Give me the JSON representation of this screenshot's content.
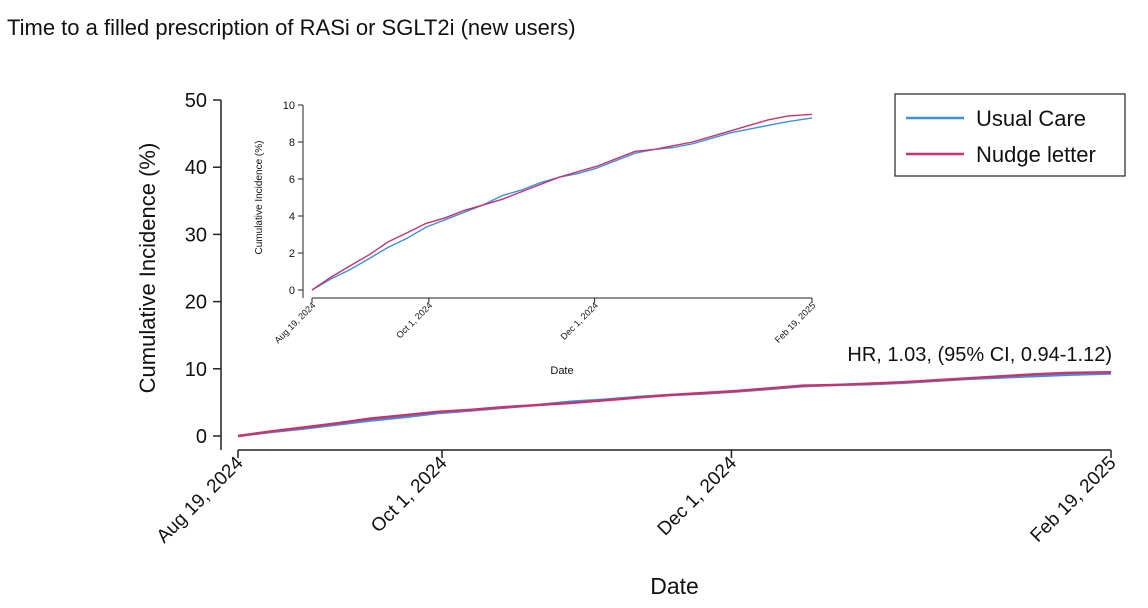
{
  "figure": {
    "title": "Time to a filled prescription of RASi or SGLT2i (new users)",
    "annotation": "HR, 1.03, (95% CI, 0.94-1.12)"
  },
  "colors": {
    "usual_care": "#3d8fe0",
    "nudge_letter": "#c8326e",
    "axis": "#222222"
  },
  "chart_data": [
    {
      "type": "line",
      "role": "main",
      "title": "",
      "xlabel": "Date",
      "ylabel": "Cumulative Incidence (%)",
      "xlim": [
        "2024-08-19",
        "2025-02-19"
      ],
      "ylim": [
        0,
        50
      ],
      "yticks": [
        0,
        10,
        20,
        30,
        40,
        50
      ],
      "xticks": [
        {
          "date": "2024-08-19",
          "label": "Aug 19, 2024"
        },
        {
          "date": "2024-10-01",
          "label": "Oct 1, 2024"
        },
        {
          "date": "2024-12-01",
          "label": "Dec 1, 2024"
        },
        {
          "date": "2025-02-19",
          "label": "Feb 19, 2025"
        }
      ],
      "grid": false,
      "legend": "top-right",
      "x": [
        "2024-08-19",
        "2024-08-26",
        "2024-09-02",
        "2024-09-09",
        "2024-09-16",
        "2024-09-23",
        "2024-09-30",
        "2024-10-07",
        "2024-10-14",
        "2024-10-21",
        "2024-10-28",
        "2024-11-04",
        "2024-11-11",
        "2024-11-18",
        "2024-11-25",
        "2024-12-02",
        "2024-12-09",
        "2024-12-16",
        "2024-12-23",
        "2024-12-30",
        "2025-01-06",
        "2025-01-13",
        "2025-01-20",
        "2025-01-27",
        "2025-02-03",
        "2025-02-10",
        "2025-02-19"
      ],
      "series": [
        {
          "name": "Usual Care",
          "values": [
            0.0,
            0.6,
            1.1,
            1.7,
            2.3,
            2.8,
            3.4,
            3.8,
            4.2,
            4.6,
            5.1,
            5.4,
            5.8,
            6.1,
            6.3,
            6.6,
            7.0,
            7.4,
            7.6,
            7.7,
            7.9,
            8.2,
            8.5,
            8.7,
            8.9,
            9.1,
            9.3
          ]
        },
        {
          "name": "Nudge letter",
          "values": [
            0.0,
            0.7,
            1.3,
            1.9,
            2.6,
            3.1,
            3.6,
            3.9,
            4.3,
            4.6,
            4.9,
            5.3,
            5.7,
            6.1,
            6.4,
            6.7,
            7.1,
            7.5,
            7.6,
            7.8,
            8.0,
            8.3,
            8.6,
            8.9,
            9.2,
            9.4,
            9.5
          ]
        }
      ]
    },
    {
      "type": "line",
      "role": "inset",
      "title": "",
      "xlabel": "Date",
      "ylabel": "Cumulative Incidence (%)",
      "xlim": [
        "2024-08-19",
        "2025-02-19"
      ],
      "ylim": [
        0,
        10
      ],
      "yticks": [
        0,
        2,
        4,
        6,
        8,
        10
      ],
      "xticks": [
        {
          "date": "2024-08-19",
          "label": "Aug 19, 2024"
        },
        {
          "date": "2024-10-01",
          "label": "Oct 1, 2024"
        },
        {
          "date": "2024-12-01",
          "label": "Dec 1, 2024"
        },
        {
          "date": "2025-02-19",
          "label": "Feb 19, 2025"
        }
      ],
      "grid": false
    }
  ]
}
